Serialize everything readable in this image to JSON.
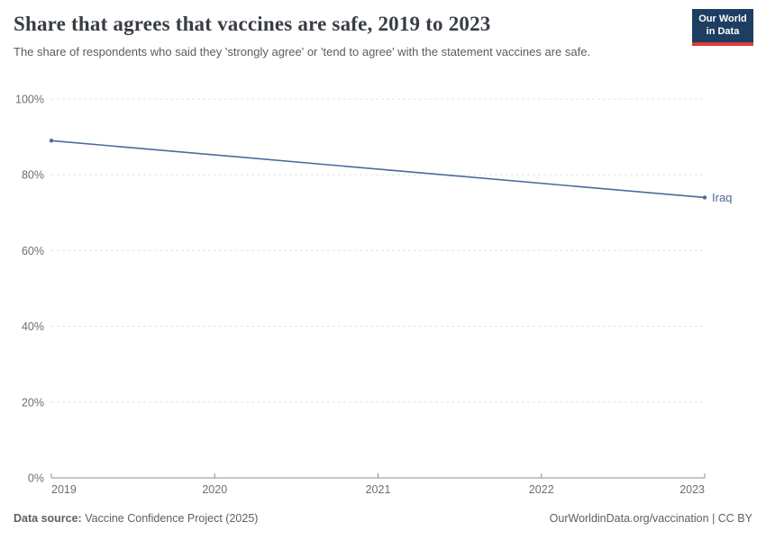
{
  "header": {
    "title": "Share that agrees that vaccines are safe, 2019 to 2023",
    "subtitle": "The share of respondents who said they 'strongly agree' or 'tend to agree' with the statement vaccines are safe.",
    "logo": {
      "line1": "Our World",
      "line2": "in Data",
      "bg_color": "#1d3d63",
      "accent_color": "#dc3c3c"
    }
  },
  "chart_data": {
    "type": "line",
    "title": "Share that agrees that vaccines are safe, 2019 to 2023",
    "xlabel": "",
    "ylabel": "",
    "x": [
      2019,
      2023
    ],
    "series": [
      {
        "name": "Iraq",
        "values": [
          89,
          74
        ],
        "color": "#4c6a9c"
      }
    ],
    "xlim": [
      2019,
      2023
    ],
    "ylim": [
      0,
      100
    ],
    "xticks": [
      2019,
      2020,
      2021,
      2022,
      2023
    ],
    "yticks": [
      0,
      20,
      40,
      60,
      80,
      100
    ],
    "ytick_suffix": "%",
    "grid": "horizontal-dashed",
    "legend": "line-end-label",
    "axis_color": "#8c8c8c",
    "grid_color": "#e3e3e3",
    "tick_label_color": "#6e6e6e"
  },
  "footer": {
    "data_source_label": "Data source:",
    "data_source_value": " Vaccine Confidence Project (2025)",
    "attribution": "OurWorldinData.org/vaccination | CC BY"
  }
}
